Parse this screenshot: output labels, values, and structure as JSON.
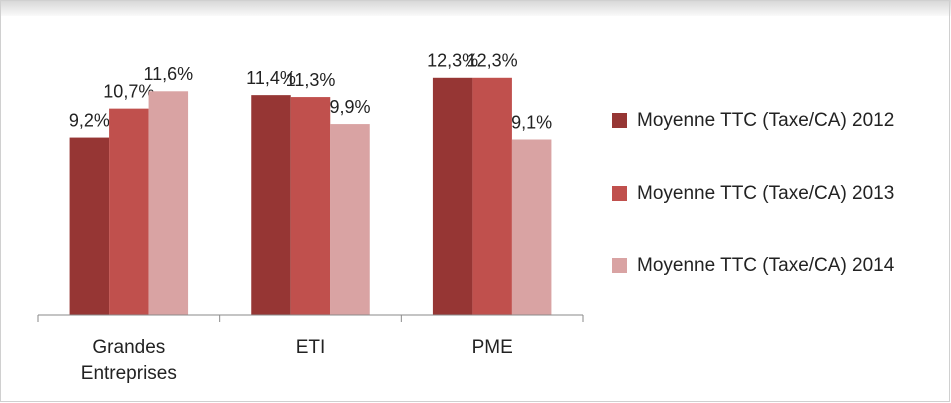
{
  "chart_data": {
    "type": "bar",
    "categories": [
      "Grandes Entreprises",
      "ETI",
      "PME"
    ],
    "series": [
      {
        "name": "Moyenne TTC (Taxe/CA) 2012",
        "color": "#963634",
        "values": [
          9.2,
          11.4,
          12.3
        ],
        "value_labels": [
          "9,2%",
          "11,4%",
          "12,3%"
        ]
      },
      {
        "name": "Moyenne TTC (Taxe/CA) 2013",
        "color": "#c0504d",
        "values": [
          10.7,
          11.3,
          12.3
        ],
        "value_labels": [
          "10,7%",
          "11,3%",
          "12,3%"
        ]
      },
      {
        "name": "Moyenne TTC (Taxe/CA) 2014",
        "color": "#d9a3a3",
        "values": [
          11.6,
          9.9,
          9.1
        ],
        "value_labels": [
          "11,6%",
          "9,9%",
          "9,1%"
        ]
      }
    ],
    "ylim": [
      0,
      14
    ],
    "legend": "right"
  }
}
